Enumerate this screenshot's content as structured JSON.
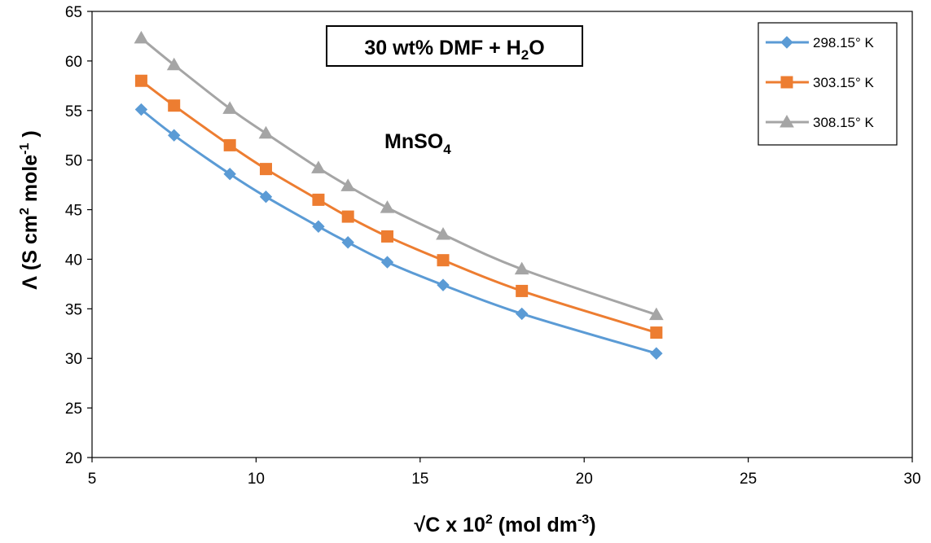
{
  "chart_data": {
    "type": "line",
    "x": [
      6.5,
      7.5,
      9.2,
      10.3,
      11.9,
      12.8,
      14.0,
      15.7,
      18.1,
      22.2
    ],
    "series": [
      {
        "name": "298.15° K",
        "color": "#5b9bd5",
        "marker": "diamond",
        "values": [
          55.1,
          52.5,
          48.6,
          46.3,
          43.3,
          41.7,
          39.7,
          37.4,
          34.5,
          30.5
        ]
      },
      {
        "name": "303.15° K",
        "color": "#ed7d31",
        "marker": "square",
        "values": [
          58.0,
          55.5,
          51.5,
          49.1,
          46.0,
          44.3,
          42.3,
          39.9,
          36.8,
          32.6
        ]
      },
      {
        "name": "308.15° K",
        "color": "#a5a5a5",
        "marker": "triangle",
        "values": [
          62.3,
          59.6,
          55.2,
          52.7,
          49.2,
          47.4,
          45.2,
          42.5,
          39.0,
          34.4
        ]
      }
    ],
    "xlim": [
      5,
      30
    ],
    "ylim": [
      20,
      65
    ],
    "xticks": [
      5,
      10,
      15,
      20,
      25,
      30
    ],
    "yticks": [
      20,
      25,
      30,
      35,
      40,
      45,
      50,
      55,
      60,
      65
    ],
    "grid": false,
    "legend_position": "top-right",
    "xlabel": {
      "main": "√C x 10",
      "sup": "2",
      "rest": " (mol dm",
      "sup2": "-3",
      "end": ")"
    },
    "ylabel": {
      "main": "Λ  (S cm",
      "sup": "2",
      "rest": " mole",
      "sup2": "-1",
      "end": " )"
    },
    "title_box": {
      "main": "30 wt% DMF + H",
      "sub": "2",
      "end": "O"
    },
    "annotation": {
      "main": "MnSO",
      "sub": "4"
    }
  }
}
